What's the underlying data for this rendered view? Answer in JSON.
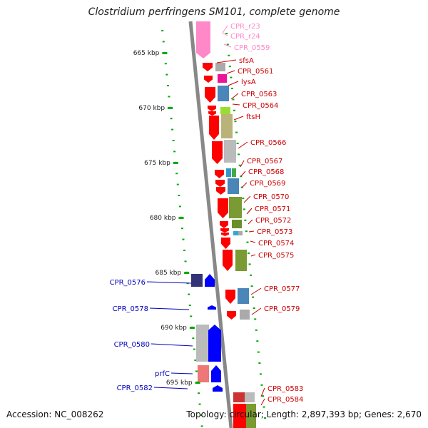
{
  "title": "Clostridium perfringens SM101, complete genome",
  "footer": {
    "accession": "Accession: NC_008262",
    "topology": "Topology: circular; Length: 2,897,393 bp; Genes: 2,670"
  },
  "colors": {
    "rna_gene": "#ff88c8",
    "forward_gene": "#ff0000",
    "reverse_gene": "#0000ff",
    "forward_label": "#cc0000",
    "reverse_label": "#0000bb",
    "ruler_tick": "#00aa00",
    "backbone": "#888888"
  },
  "ruler": [
    {
      "label": "665 kbp",
      "kbp": 665
    },
    {
      "label": "670 kbp",
      "kbp": 670
    },
    {
      "label": "675 kbp",
      "kbp": 675
    },
    {
      "label": "680 kbp",
      "kbp": 680
    },
    {
      "label": "685 kbp",
      "kbp": 685
    },
    {
      "label": "690 kbp",
      "kbp": 690
    },
    {
      "label": "695 kbp",
      "kbp": 695
    }
  ],
  "gene_labels": [
    {
      "name": "CPR_r23",
      "strand": "rna"
    },
    {
      "name": "CPR_r24",
      "strand": "rna"
    },
    {
      "name": "CPR_0559",
      "strand": "rna"
    },
    {
      "name": "sfsA",
      "strand": "forward"
    },
    {
      "name": "CPR_0561",
      "strand": "forward"
    },
    {
      "name": "lysA",
      "strand": "forward"
    },
    {
      "name": "CPR_0563",
      "strand": "forward"
    },
    {
      "name": "CPR_0564",
      "strand": "forward"
    },
    {
      "name": "ftsH",
      "strand": "forward"
    },
    {
      "name": "CPR_0566",
      "strand": "forward"
    },
    {
      "name": "CPR_0567",
      "strand": "forward"
    },
    {
      "name": "CPR_0568",
      "strand": "forward"
    },
    {
      "name": "CPR_0569",
      "strand": "forward"
    },
    {
      "name": "CPR_0570",
      "strand": "forward"
    },
    {
      "name": "CPR_0571",
      "strand": "forward"
    },
    {
      "name": "CPR_0572",
      "strand": "forward"
    },
    {
      "name": "CPR_0573",
      "strand": "forward"
    },
    {
      "name": "CPR_0574",
      "strand": "forward"
    },
    {
      "name": "CPR_0575",
      "strand": "forward"
    },
    {
      "name": "CPR_0577",
      "strand": "forward"
    },
    {
      "name": "CPR_0579",
      "strand": "forward"
    },
    {
      "name": "CPR_0583",
      "strand": "forward"
    },
    {
      "name": "CPR_0584",
      "strand": "forward"
    },
    {
      "name": "CPR_0576",
      "strand": "reverse"
    },
    {
      "name": "CPR_0578",
      "strand": "reverse"
    },
    {
      "name": "CPR_0580",
      "strand": "reverse"
    },
    {
      "name": "prfC",
      "strand": "reverse"
    },
    {
      "name": "CPR_0582",
      "strand": "reverse"
    }
  ]
}
